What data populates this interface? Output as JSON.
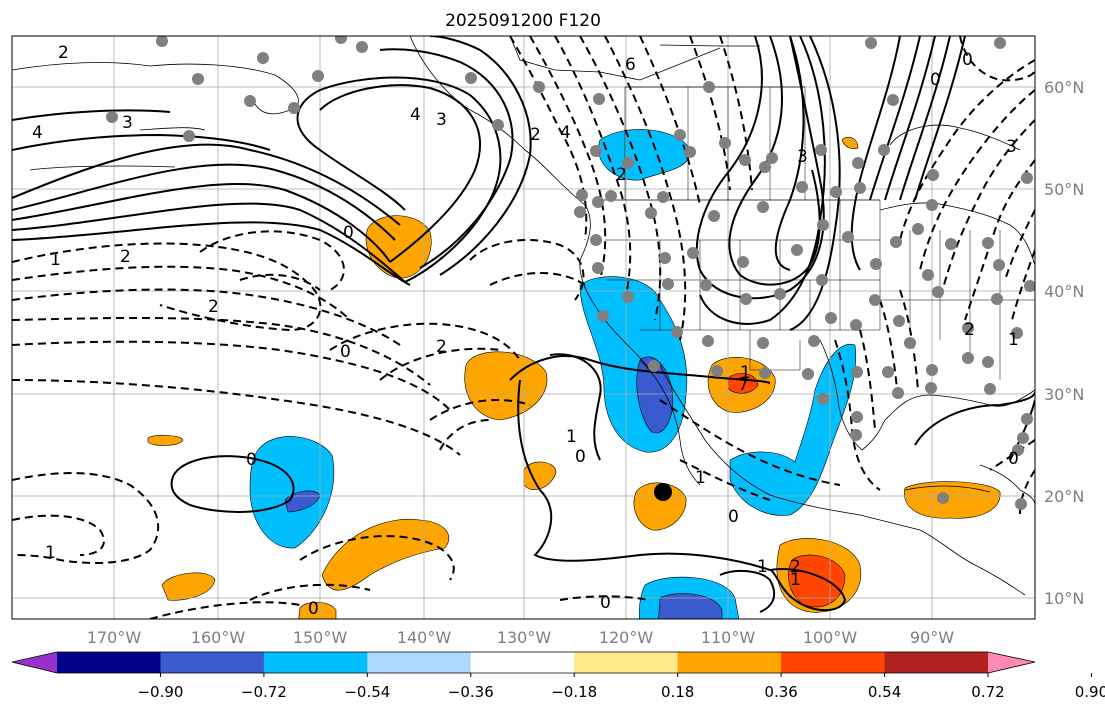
{
  "title": "2025091200 F120",
  "map": {
    "lon_labels": [
      "170°W",
      "160°W",
      "150°W",
      "140°W",
      "130°W",
      "120°W",
      "110°W",
      "100°W",
      "90°W"
    ],
    "lat_labels": [
      "60°N",
      "50°N",
      "40°N",
      "30°N",
      "20°N",
      "10°N"
    ]
  },
  "colorbar": {
    "ticks": [
      "−0.90",
      "−0.72",
      "−0.54",
      "−0.36",
      "−0.18",
      "0.18",
      "0.36",
      "0.54",
      "0.72",
      "0.90"
    ],
    "colors": [
      "#9932cc",
      "#00008b",
      "#3a5bd0",
      "#00bfff",
      "#add8ff",
      "#ffffff",
      "#ffea8a",
      "#ffa500",
      "#ff4500",
      "#b22222",
      "#ff88b4"
    ]
  },
  "contour_labels": {
    "a": "2",
    "b": "4",
    "c": "3",
    "d": "0",
    "e": "4",
    "f": "3",
    "g": "2",
    "h": "6",
    "i": "4",
    "j": "0",
    "k": "3",
    "l": "0",
    "m": "1",
    "n": "2",
    "o": "2",
    "p": "0",
    "q": "2",
    "r": "1",
    "s": "0",
    "t": "1",
    "u": "0",
    "v": "1",
    "w": "1",
    "x": "1",
    "y": "0",
    "z": "2",
    "aa": "1",
    "ab": "0",
    "ac": "0",
    "ad": "2",
    "ae": "1",
    "af": "3",
    "ag": "0",
    "ah": "2",
    "ai": "7"
  }
}
